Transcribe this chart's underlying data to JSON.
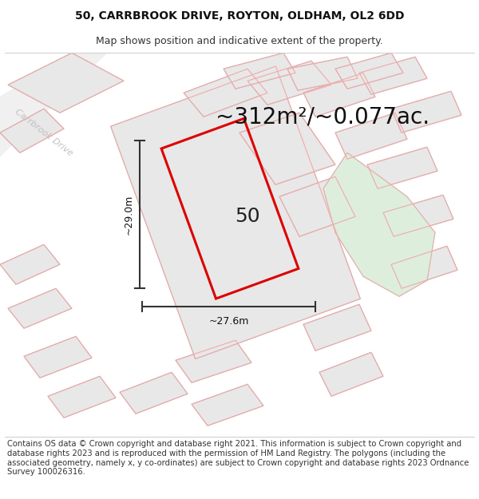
{
  "title": "50, CARRBROOK DRIVE, ROYTON, OLDHAM, OL2 6DD",
  "subtitle": "Map shows position and indicative extent of the property.",
  "area_text": "~312m²/~0.077ac.",
  "label_number": "50",
  "dim_width": "~27.6m",
  "dim_height": "~29.0m",
  "road_label": "Carrbrook Drive",
  "footer_text": "Contains OS data © Crown copyright and database right 2021. This information is subject to Crown copyright and database rights 2023 and is reproduced with the permission of HM Land Registry. The polygons (including the associated geometry, namely x, y co-ordinates) are subject to Crown copyright and database rights 2023 Ordnance Survey 100026316.",
  "map_bg": "#ffffff",
  "building_fill": "#e8e8e8",
  "building_stroke": "#c0c0c0",
  "pink_stroke": "#f0aaaa",
  "red_outline": "#dd0000",
  "green_fill": "#ddeedd",
  "green_stroke": "#c0d8c0",
  "road_fill": "#f5f5f5",
  "road_label_color": "#bbbbbb",
  "title_fontsize": 10,
  "subtitle_fontsize": 9,
  "area_fontsize": 20,
  "label_fontsize": 18,
  "dim_fontsize": 9,
  "footer_fontsize": 7.2
}
